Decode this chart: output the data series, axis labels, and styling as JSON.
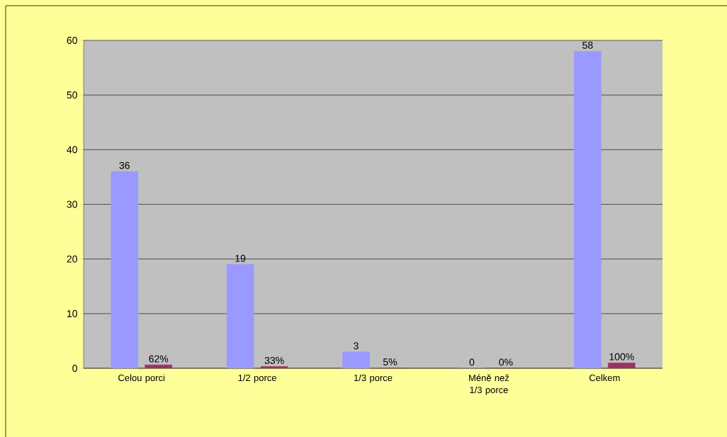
{
  "chart_data": {
    "type": "bar",
    "categories": [
      "Celou porci",
      "1/2 porce",
      "1/3 porce",
      "Méně než  1/3 porce",
      "Celkem"
    ],
    "series": [
      {
        "color": "#9999ff",
        "values": [
          36,
          19,
          3,
          0,
          58
        ],
        "value_labels": [
          "36",
          "19",
          "3",
          "0",
          "58"
        ]
      },
      {
        "color": "#993366",
        "values": [
          0.62,
          0.33,
          0.05,
          0,
          1
        ],
        "value_labels": [
          "62%",
          "33%",
          "5%",
          "0%",
          "100%"
        ]
      }
    ],
    "ylim": [
      0,
      60
    ],
    "yticks": [
      0,
      10,
      20,
      30,
      40,
      50,
      60
    ],
    "grid": "y"
  }
}
